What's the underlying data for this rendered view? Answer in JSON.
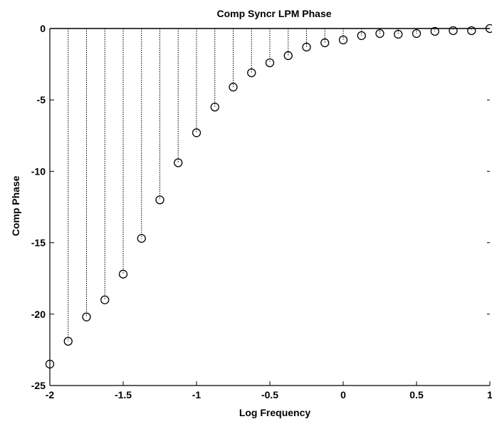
{
  "chart_data": {
    "type": "stem",
    "title": "Comp Syncr LPM Phase",
    "xlabel": "Log Frequency",
    "ylabel": "Comp Phase",
    "xlim": [
      -2,
      1
    ],
    "ylim": [
      -25,
      0
    ],
    "xticks": [
      -2,
      -1.5,
      -1,
      -0.5,
      0,
      0.5,
      1
    ],
    "xtick_labels": [
      "-2",
      "-1.5",
      "-1",
      "-0.5",
      "0",
      "0.5",
      "1"
    ],
    "yticks": [
      0,
      -5,
      -10,
      -15,
      -20,
      -25
    ],
    "ytick_labels": [
      "0",
      "-5",
      "-10",
      "-15",
      "-20",
      "-25"
    ],
    "marker": "circle",
    "series": [
      {
        "x": [
          -2,
          -1.875,
          -1.75,
          -1.625,
          -1.5,
          -1.375,
          -1.25,
          -1.125,
          -1,
          -0.875,
          -0.75,
          -0.625,
          -0.5,
          -0.375,
          -0.25,
          -0.125,
          0,
          0.125,
          0.25,
          0.375,
          0.5,
          0.625,
          0.75,
          0.875,
          1
        ],
        "y": [
          -23.5,
          -21.9,
          -20.2,
          -19.0,
          -17.2,
          -14.7,
          -12.0,
          -9.4,
          -7.3,
          -5.5,
          -4.1,
          -3.1,
          -2.4,
          -1.9,
          -1.3,
          -1.0,
          -0.8,
          -0.5,
          -0.35,
          -0.4,
          -0.35,
          -0.2,
          -0.15,
          -0.15,
          0
        ]
      }
    ]
  }
}
